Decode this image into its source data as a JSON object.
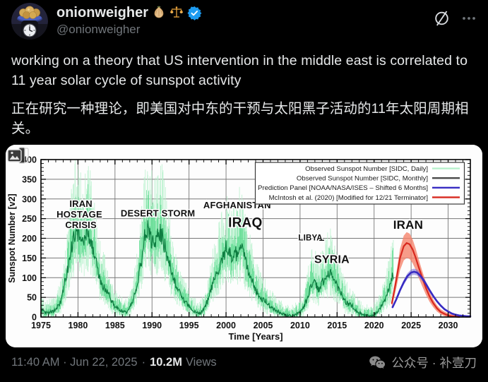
{
  "post": {
    "author": {
      "name": "onionweigher",
      "handle": "@onionweigher",
      "badges": [
        "onion-emoji",
        "balance-scale-emoji",
        "verified-badge"
      ]
    },
    "text_en": "working on a theory that US intervention in the middle east is correlated to 11 year solar cycle of sunspot activity",
    "text_zh": "正在研究一种理论，即美国对中东的干预与太阳黑子活动的11年太阳周期相关。",
    "timestamp": "11:40 AM · Jun 22, 2025",
    "separator": "·",
    "views_count": "10.2M",
    "views_label": "Views"
  },
  "watermark": {
    "text": "公众号 · 补壹刀"
  },
  "colors": {
    "accent_blue": "#1d9bf0",
    "text_primary": "#e7e9ea",
    "text_secondary": "#71767b",
    "background": "#000000"
  },
  "chart_data": {
    "type": "line",
    "title": "",
    "xlabel": "Time [Years]",
    "ylabel": "Sunspot Number [v2]",
    "xlim": [
      1975,
      2033
    ],
    "ylim": [
      0,
      400
    ],
    "x_ticks": [
      1975,
      1980,
      1985,
      1990,
      1995,
      2000,
      2005,
      2010,
      2015,
      2020,
      2025,
      2030
    ],
    "y_ticks": [
      0,
      50,
      100,
      150,
      200,
      250,
      300,
      350,
      400
    ],
    "grid": true,
    "grid_color": "#777777",
    "legend_position": "top-right",
    "series": [
      {
        "name": "Observed Sunspot Number [SIDC, Daily]",
        "style": "spikes",
        "color": "#b7f1cc",
        "color2": "#56da8b"
      },
      {
        "name": "Observed Sunspot Number [SIDC, Monthly]",
        "style": "line",
        "color": "#0e7d41",
        "legend_color": "#4a4a4a",
        "points": [
          [
            1975.0,
            18
          ],
          [
            1975.4,
            14
          ],
          [
            1975.8,
            11
          ],
          [
            1976.2,
            13
          ],
          [
            1976.6,
            13
          ],
          [
            1977.0,
            20
          ],
          [
            1977.4,
            30
          ],
          [
            1977.8,
            45
          ],
          [
            1978.2,
            85
          ],
          [
            1978.6,
            120
          ],
          [
            1979.0,
            165
          ],
          [
            1979.4,
            205
          ],
          [
            1979.8,
            225
          ],
          [
            1980.2,
            205
          ],
          [
            1980.6,
            190
          ],
          [
            1981.0,
            205
          ],
          [
            1981.4,
            215
          ],
          [
            1981.8,
            185
          ],
          [
            1982.2,
            165
          ],
          [
            1982.6,
            130
          ],
          [
            1983.0,
            95
          ],
          [
            1983.4,
            80
          ],
          [
            1984.0,
            65
          ],
          [
            1984.5,
            40
          ],
          [
            1985.0,
            28
          ],
          [
            1985.5,
            20
          ],
          [
            1986.0,
            14
          ],
          [
            1986.5,
            12
          ],
          [
            1987.0,
            25
          ],
          [
            1987.5,
            45
          ],
          [
            1988.0,
            85
          ],
          [
            1988.5,
            135
          ],
          [
            1989.0,
            200
          ],
          [
            1989.4,
            220
          ],
          [
            1989.8,
            205
          ],
          [
            1990.2,
            185
          ],
          [
            1990.6,
            195
          ],
          [
            1991.0,
            215
          ],
          [
            1991.4,
            205
          ],
          [
            1991.8,
            175
          ],
          [
            1992.2,
            145
          ],
          [
            1992.6,
            115
          ],
          [
            1993.0,
            90
          ],
          [
            1993.5,
            70
          ],
          [
            1994.0,
            48
          ],
          [
            1994.5,
            38
          ],
          [
            1995.0,
            26
          ],
          [
            1995.5,
            18
          ],
          [
            1996.0,
            11
          ],
          [
            1996.5,
            9
          ],
          [
            1997.0,
            20
          ],
          [
            1997.5,
            40
          ],
          [
            1998.0,
            75
          ],
          [
            1998.5,
            100
          ],
          [
            1999.0,
            120
          ],
          [
            1999.5,
            145
          ],
          [
            2000.0,
            175
          ],
          [
            2000.4,
            165
          ],
          [
            2000.8,
            145
          ],
          [
            2001.2,
            155
          ],
          [
            2001.6,
            170
          ],
          [
            2002.0,
            175
          ],
          [
            2002.4,
            160
          ],
          [
            2002.8,
            130
          ],
          [
            2003.2,
            105
          ],
          [
            2003.6,
            90
          ],
          [
            2004.0,
            68
          ],
          [
            2004.5,
            55
          ],
          [
            2005.0,
            45
          ],
          [
            2005.5,
            38
          ],
          [
            2006.0,
            26
          ],
          [
            2006.5,
            20
          ],
          [
            2007.0,
            14
          ],
          [
            2007.5,
            10
          ],
          [
            2008.0,
            5
          ],
          [
            2008.5,
            3
          ],
          [
            2009.0,
            3
          ],
          [
            2009.5,
            7
          ],
          [
            2010.0,
            15
          ],
          [
            2010.5,
            25
          ],
          [
            2011.0,
            50
          ],
          [
            2011.5,
            85
          ],
          [
            2012.0,
            85
          ],
          [
            2012.5,
            70
          ],
          [
            2013.0,
            85
          ],
          [
            2013.5,
            100
          ],
          [
            2014.0,
            115
          ],
          [
            2014.4,
            105
          ],
          [
            2014.8,
            90
          ],
          [
            2015.2,
            72
          ],
          [
            2015.6,
            62
          ],
          [
            2016.0,
            42
          ],
          [
            2016.5,
            33
          ],
          [
            2017.0,
            28
          ],
          [
            2017.5,
            18
          ],
          [
            2018.0,
            10
          ],
          [
            2018.5,
            7
          ],
          [
            2019.0,
            4
          ],
          [
            2019.5,
            4
          ],
          [
            2020.0,
            7
          ],
          [
            2020.5,
            14
          ],
          [
            2021.0,
            28
          ],
          [
            2021.5,
            45
          ],
          [
            2022.0,
            72
          ],
          [
            2022.3,
            92
          ],
          [
            2022.6,
            110
          ]
        ]
      },
      {
        "name": "Prediction Panel [NOAA/NASA/ISES – Shifted 6 Months]",
        "style": "line-band",
        "color": "#372bc2",
        "band_color": "#6a5fd8",
        "band_opacity": 0.5,
        "band_top": [
          1.055,
          1.5
        ],
        "band_bottom": [
          0.945,
          -1.5
        ],
        "points": [
          [
            2022.5,
            25
          ],
          [
            2023.0,
            45
          ],
          [
            2023.5,
            68
          ],
          [
            2024.0,
            88
          ],
          [
            2024.5,
            104
          ],
          [
            2025.0,
            113
          ],
          [
            2025.4,
            115
          ],
          [
            2025.8,
            113
          ],
          [
            2026.2,
            106
          ],
          [
            2026.6,
            96
          ],
          [
            2027.0,
            84
          ],
          [
            2027.5,
            68
          ],
          [
            2028.0,
            53
          ],
          [
            2028.5,
            40
          ],
          [
            2029.0,
            29
          ],
          [
            2029.5,
            20
          ],
          [
            2030.0,
            14
          ],
          [
            2030.5,
            9
          ],
          [
            2031.0,
            6
          ],
          [
            2031.5,
            4
          ],
          [
            2032.0,
            3
          ],
          [
            2032.5,
            2
          ],
          [
            2033.0,
            2
          ]
        ]
      },
      {
        "name": "McIntosh et al. (2020) [Modified for 12/21 Terminator]",
        "style": "line-band",
        "color": "#d8281e",
        "band_color": "#f5836c",
        "band_opacity": 0.8,
        "band_top": [
          1.12,
          5
        ],
        "band_bottom": [
          0.82,
          -4
        ],
        "points": [
          [
            2022.4,
            35
          ],
          [
            2023.0,
            95
          ],
          [
            2023.5,
            150
          ],
          [
            2024.0,
            180
          ],
          [
            2024.4,
            188
          ],
          [
            2024.8,
            185
          ],
          [
            2025.2,
            172
          ],
          [
            2025.6,
            152
          ],
          [
            2026.0,
            128
          ],
          [
            2026.5,
            100
          ],
          [
            2027.0,
            74
          ],
          [
            2027.5,
            52
          ],
          [
            2028.0,
            35
          ],
          [
            2028.5,
            22
          ],
          [
            2029.0,
            13
          ],
          [
            2029.5,
            8
          ],
          [
            2030.0,
            4
          ],
          [
            2030.5,
            2
          ],
          [
            2031.0,
            1
          ],
          [
            2031.5,
            0
          ]
        ]
      }
    ],
    "annotations": [
      {
        "text": "IRAN",
        "x": 1980.4,
        "y": 280,
        "size": 13,
        "weight": 700
      },
      {
        "text": "HOSTAGE",
        "x": 1980.2,
        "y": 253,
        "size": 13,
        "weight": 700
      },
      {
        "text": "CRISIS",
        "x": 1980.4,
        "y": 226,
        "size": 13,
        "weight": 700
      },
      {
        "text": "DESERT STORM",
        "x": 1990.8,
        "y": 256,
        "size": 13,
        "weight": 700
      },
      {
        "text": "AFGHANISTAN",
        "x": 2001.5,
        "y": 276,
        "size": 13,
        "weight": 700
      },
      {
        "text": "IRAQ",
        "x": 2002.6,
        "y": 229,
        "size": 19,
        "weight": 700
      },
      {
        "text": "LIBYA",
        "x": 2011.4,
        "y": 195,
        "size": 11.5,
        "weight": 700,
        "leader": [
          2012.6,
          195,
          2013.25,
          195
        ]
      },
      {
        "text": "SYRIA",
        "x": 2014.3,
        "y": 137,
        "size": 16,
        "weight": 700
      },
      {
        "text": "IRAN",
        "x": 2024.6,
        "y": 224,
        "size": 17,
        "weight": 700
      }
    ]
  }
}
